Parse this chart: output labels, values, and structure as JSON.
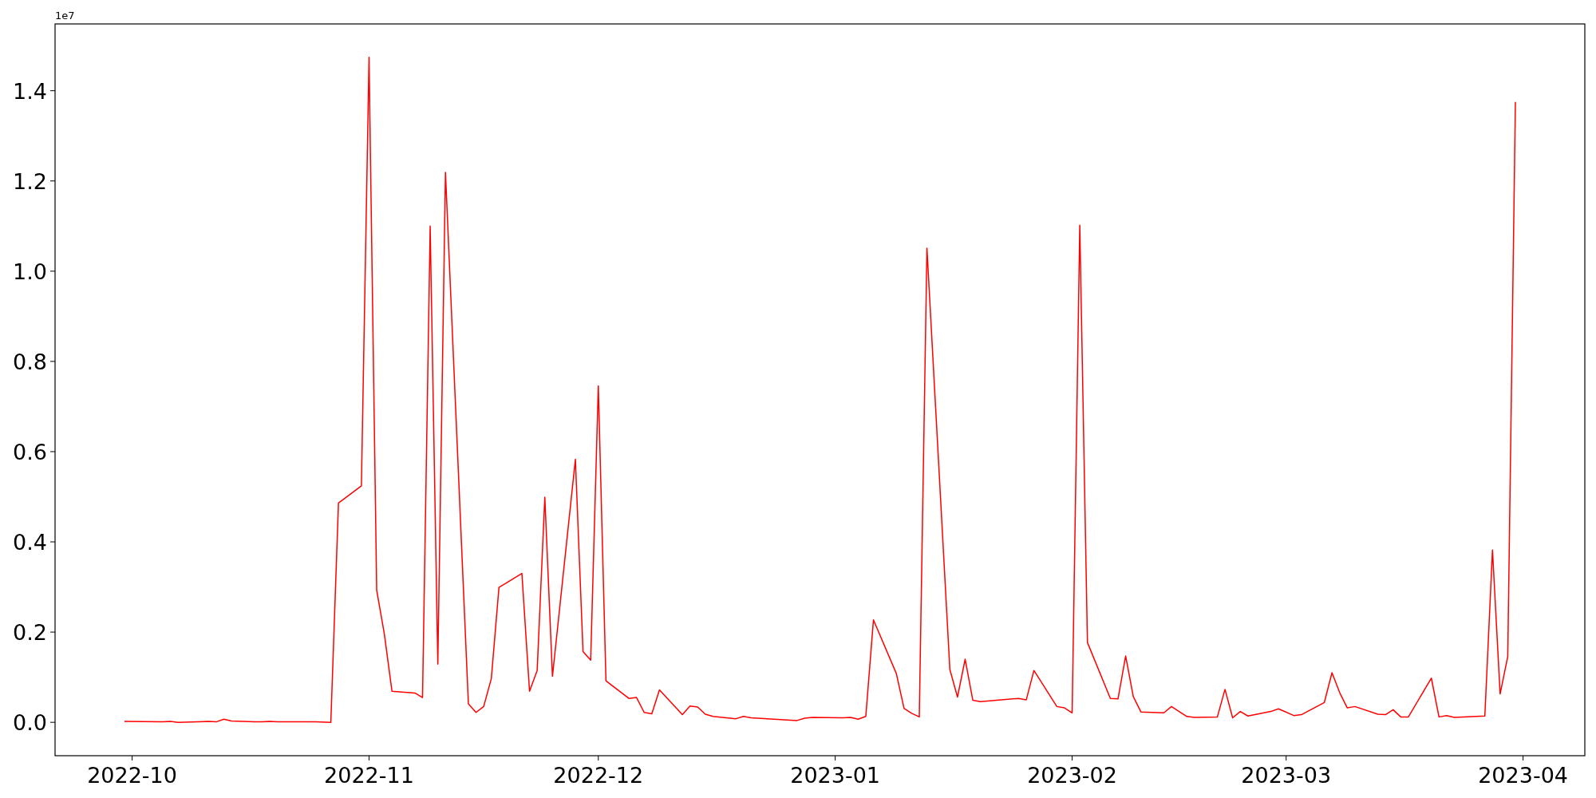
{
  "chart_data": {
    "type": "line",
    "annotations": [
      "1e7"
    ],
    "x": [
      "2022-09-30",
      "2022-10-05",
      "2022-10-06",
      "2022-10-07",
      "2022-10-11",
      "2022-10-12",
      "2022-10-13",
      "2022-10-14",
      "2022-10-17",
      "2022-10-18",
      "2022-10-19",
      "2022-10-20",
      "2022-10-25",
      "2022-10-27",
      "2022-10-28",
      "2022-10-31",
      "2022-11-01",
      "2022-11-02",
      "2022-11-03",
      "2022-11-04",
      "2022-11-07",
      "2022-11-08",
      "2022-11-09",
      "2022-11-10",
      "2022-11-11",
      "2022-11-14",
      "2022-11-15",
      "2022-11-16",
      "2022-11-17",
      "2022-11-18",
      "2022-11-21",
      "2022-11-22",
      "2022-11-23",
      "2022-11-24",
      "2022-11-25",
      "2022-11-28",
      "2022-11-29",
      "2022-11-30",
      "2022-12-01",
      "2022-12-02",
      "2022-12-05",
      "2022-12-06",
      "2022-12-07",
      "2022-12-08",
      "2022-12-09",
      "2022-12-12",
      "2022-12-13",
      "2022-12-14",
      "2022-12-15",
      "2022-12-16",
      "2022-12-19",
      "2022-12-20",
      "2022-12-21",
      "2022-12-27",
      "2022-12-28",
      "2022-12-29",
      "2023-01-02",
      "2023-01-03",
      "2023-01-04",
      "2023-01-05",
      "2023-01-06",
      "2023-01-09",
      "2023-01-10",
      "2023-01-11",
      "2023-01-12",
      "2023-01-13",
      "2023-01-16",
      "2023-01-17",
      "2023-01-18",
      "2023-01-19",
      "2023-01-20",
      "2023-01-25",
      "2023-01-26",
      "2023-01-27",
      "2023-01-30",
      "2023-01-31",
      "2023-02-01",
      "2023-02-02",
      "2023-02-03",
      "2023-02-06",
      "2023-02-07",
      "2023-02-08",
      "2023-02-09",
      "2023-02-10",
      "2023-02-13",
      "2023-02-14",
      "2023-02-16",
      "2023-02-17",
      "2023-02-20",
      "2023-02-21",
      "2023-02-22",
      "2023-02-23",
      "2023-02-24",
      "2023-02-27",
      "2023-02-28",
      "2023-03-02",
      "2023-03-03",
      "2023-03-06",
      "2023-03-07",
      "2023-03-08",
      "2023-03-09",
      "2023-03-10",
      "2023-03-13",
      "2023-03-14",
      "2023-03-15",
      "2023-03-16",
      "2023-03-17",
      "2023-03-20",
      "2023-03-21",
      "2023-03-22",
      "2023-03-23",
      "2023-03-27",
      "2023-03-28",
      "2023-03-29",
      "2023-03-30",
      "2023-03-31"
    ],
    "series": [
      {
        "color": "#ff0000",
        "values": [
          0.002,
          0.001,
          0.002,
          0.0,
          0.002,
          0.001,
          0.007,
          0.003,
          0.001,
          0.001,
          0.002,
          0.001,
          0.001,
          0.0,
          0.486,
          0.524,
          1.474,
          0.293,
          0.196,
          0.069,
          0.065,
          0.055,
          1.1,
          0.129,
          1.219,
          0.041,
          0.022,
          0.035,
          0.097,
          0.299,
          0.33,
          0.069,
          0.115,
          0.499,
          0.102,
          0.583,
          0.157,
          0.138,
          0.746,
          0.092,
          0.053,
          0.055,
          0.022,
          0.019,
          0.072,
          0.017,
          0.036,
          0.034,
          0.018,
          0.013,
          0.008,
          0.013,
          0.01,
          0.004,
          0.009,
          0.011,
          0.01,
          0.011,
          0.007,
          0.013,
          0.227,
          0.108,
          0.031,
          0.02,
          0.012,
          1.051,
          0.117,
          0.056,
          0.14,
          0.049,
          0.046,
          0.053,
          0.05,
          0.115,
          0.035,
          0.032,
          0.021,
          1.102,
          0.177,
          0.053,
          0.052,
          0.147,
          0.057,
          0.023,
          0.021,
          0.035,
          0.013,
          0.011,
          0.012,
          0.073,
          0.01,
          0.024,
          0.014,
          0.024,
          0.03,
          0.015,
          0.017,
          0.044,
          0.11,
          0.066,
          0.032,
          0.035,
          0.018,
          0.017,
          0.028,
          0.012,
          0.012,
          0.098,
          0.012,
          0.015,
          0.011,
          0.014,
          0.382,
          0.063,
          0.146,
          1.375
        ]
      }
    ],
    "xlim": [
      "2022-09-20T22:00",
      "2023-04-09T02:00"
    ],
    "xticks": [
      "2022-10",
      "2022-11",
      "2022-12",
      "2023-01",
      "2023-02",
      "2023-03",
      "2023-04"
    ],
    "ylim": [
      -0.074,
      1.548
    ],
    "yticks": [
      {
        "value": 0,
        "label": "0.0"
      },
      {
        "value": 0.2,
        "label": "0.2"
      },
      {
        "value": 0.4,
        "label": "0.4"
      },
      {
        "value": 0.6,
        "label": "0.6"
      },
      {
        "value": 0.8,
        "label": "0.8"
      },
      {
        "value": 1.0,
        "label": "1.0"
      },
      {
        "value": 1.2,
        "label": "1.2"
      },
      {
        "value": 1.4,
        "label": "1.4"
      }
    ],
    "grid": false,
    "marker": "none",
    "line_style": "solid"
  }
}
